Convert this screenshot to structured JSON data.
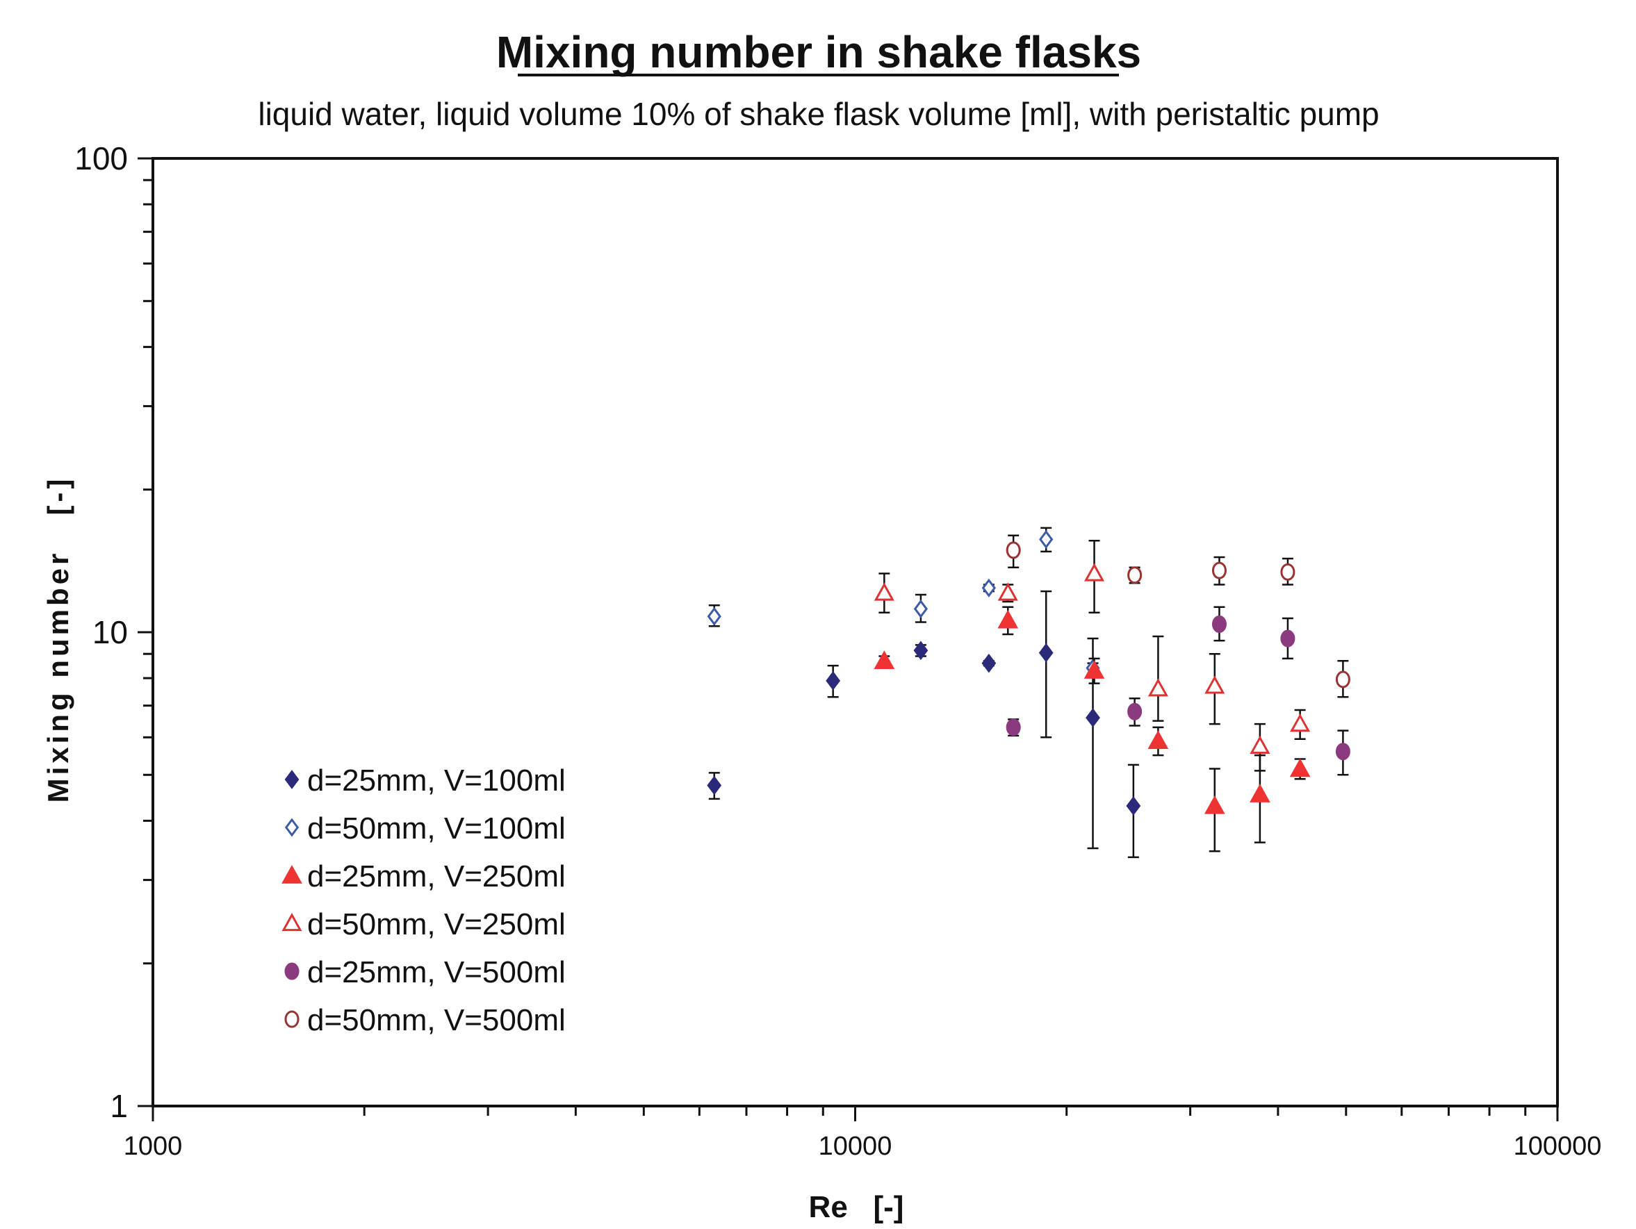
{
  "chart_data": {
    "type": "scatter",
    "title": "Mixing number in shake flasks",
    "subtitle": "liquid water, liquid volume 10% of shake flask volume [ml], with peristaltic pump",
    "xlabel": "Re   [-]",
    "ylabel": "Mixing number   [-]",
    "xscale": "log",
    "yscale": "log",
    "xlim": [
      1000,
      100000
    ],
    "ylim": [
      1,
      100
    ],
    "x_tick_labels": [
      "1000",
      "10000",
      "100000"
    ],
    "y_tick_labels": [
      "1",
      "10",
      "100"
    ],
    "grid": false,
    "legend_position": "left-bottom inside plot",
    "series": [
      {
        "name": "d=25mm, V=100ml",
        "marker": "diamond",
        "filled": true,
        "color": "#2b2a7a",
        "points": [
          {
            "x": 6300,
            "y": 4.75,
            "err": [
              4.45,
              5.05
            ]
          },
          {
            "x": 9300,
            "y": 7.9,
            "err": [
              7.3,
              8.5
            ]
          },
          {
            "x": 12400,
            "y": 9.15,
            "err": [
              8.9,
              9.4
            ]
          },
          {
            "x": 15500,
            "y": 8.6,
            "err": [
              8.5,
              8.7
            ]
          },
          {
            "x": 18700,
            "y": 9.05,
            "err": [
              6.0,
              12.2
            ]
          },
          {
            "x": 21800,
            "y": 6.6,
            "err": [
              3.5,
              9.7
            ]
          },
          {
            "x": 24900,
            "y": 4.3,
            "err": [
              3.35,
              5.25
            ]
          }
        ]
      },
      {
        "name": "d=50mm, V=100ml",
        "marker": "diamond",
        "filled": false,
        "color": "#3b5ba8",
        "points": [
          {
            "x": 6300,
            "y": 10.8,
            "err": [
              10.3,
              11.4
            ]
          },
          {
            "x": 12400,
            "y": 11.2,
            "err": [
              10.5,
              12.0
            ]
          },
          {
            "x": 15500,
            "y": 12.4,
            "err": [
              12.2,
              12.6
            ]
          },
          {
            "x": 18700,
            "y": 15.7,
            "err": [
              14.8,
              16.6
            ]
          },
          {
            "x": 21800,
            "y": 8.4,
            "err": [
              8.2,
              8.6
            ]
          }
        ]
      },
      {
        "name": "d=25mm, V=250ml",
        "marker": "triangle",
        "filled": true,
        "color": "#ee3333",
        "points": [
          {
            "x": 11000,
            "y": 8.7,
            "err": [
              8.5,
              8.9
            ]
          },
          {
            "x": 16500,
            "y": 10.6,
            "err": [
              9.9,
              11.3
            ]
          },
          {
            "x": 21900,
            "y": 8.3,
            "err": [
              7.8,
              8.8
            ]
          },
          {
            "x": 27000,
            "y": 5.9,
            "err": [
              5.5,
              6.3
            ]
          },
          {
            "x": 32500,
            "y": 4.3,
            "err": [
              3.45,
              5.15
            ]
          },
          {
            "x": 37700,
            "y": 4.55,
            "err": [
              3.6,
              5.5
            ]
          },
          {
            "x": 43000,
            "y": 5.15,
            "err": [
              4.9,
              5.4
            ]
          }
        ]
      },
      {
        "name": "d=50mm, V=250ml",
        "marker": "triangle",
        "filled": false,
        "color": "#dd3333",
        "points": [
          {
            "x": 11000,
            "y": 12.1,
            "err": [
              11.0,
              13.3
            ]
          },
          {
            "x": 16500,
            "y": 12.1,
            "err": [
              11.6,
              12.6
            ]
          },
          {
            "x": 21900,
            "y": 13.3,
            "err": [
              11.0,
              15.6
            ]
          },
          {
            "x": 27000,
            "y": 7.6,
            "err": [
              6.5,
              9.8
            ]
          },
          {
            "x": 32500,
            "y": 7.7,
            "err": [
              6.4,
              9.0
            ]
          },
          {
            "x": 37700,
            "y": 5.75,
            "err": [
              5.1,
              6.4
            ]
          },
          {
            "x": 43000,
            "y": 6.4,
            "err": [
              5.95,
              6.85
            ]
          }
        ]
      },
      {
        "name": "d=25mm, V=500ml",
        "marker": "circle",
        "filled": true,
        "color": "#8b3a7e",
        "points": [
          {
            "x": 16800,
            "y": 6.3,
            "err": [
              6.05,
              6.55
            ]
          },
          {
            "x": 25000,
            "y": 6.8,
            "err": [
              6.35,
              7.25
            ]
          },
          {
            "x": 33000,
            "y": 10.4,
            "err": [
              9.6,
              11.3
            ]
          },
          {
            "x": 41300,
            "y": 9.7,
            "err": [
              8.8,
              10.7
            ]
          },
          {
            "x": 49500,
            "y": 5.6,
            "err": [
              5.0,
              6.2
            ]
          }
        ]
      },
      {
        "name": "d=50mm, V=500ml",
        "marker": "circle",
        "filled": false,
        "color": "#993333",
        "points": [
          {
            "x": 16800,
            "y": 14.9,
            "err": [
              13.7,
              16.0
            ]
          },
          {
            "x": 25000,
            "y": 13.2,
            "err": [
              12.7,
              13.7
            ]
          },
          {
            "x": 33000,
            "y": 13.5,
            "err": [
              12.6,
              14.4
            ]
          },
          {
            "x": 41300,
            "y": 13.4,
            "err": [
              12.6,
              14.3
            ]
          },
          {
            "x": 49500,
            "y": 7.95,
            "err": [
              7.3,
              8.7
            ]
          }
        ]
      }
    ]
  }
}
